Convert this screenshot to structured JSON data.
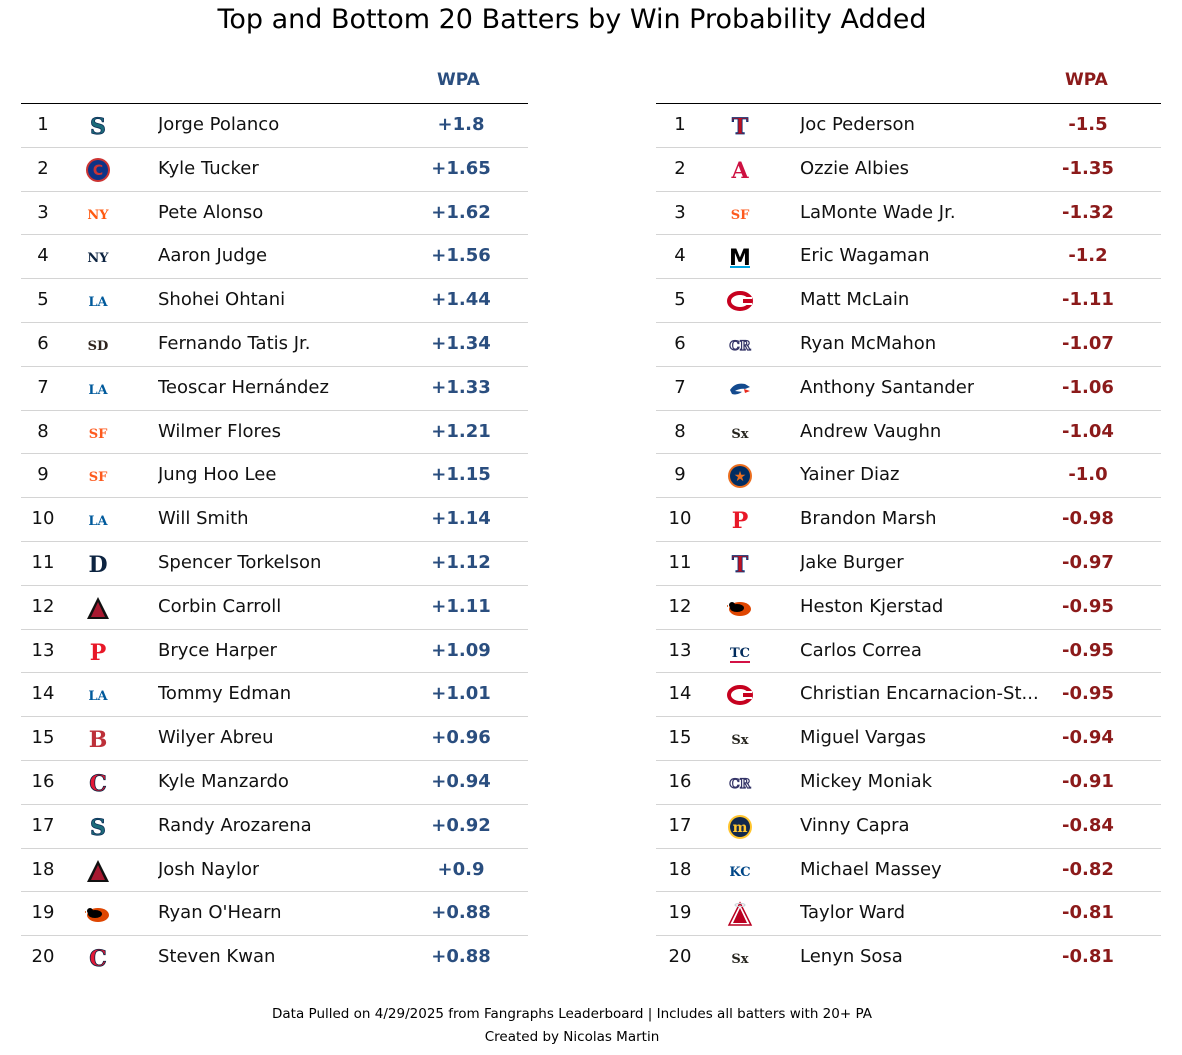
{
  "title": "Top and Bottom 20 Batters by Win Probability Added",
  "footer": {
    "line1": "Data Pulled on 4/29/2025 from Fangraphs Leaderboard | Includes all batters with 20+ PA",
    "line2": "Created by Nicolas Martin"
  },
  "colors": {
    "top_accent": "#2a4e7f",
    "bottom_accent": "#8b1a1a"
  },
  "chart_data": [
    {
      "type": "table",
      "columns": [
        "",
        "",
        "",
        "WPA"
      ],
      "header_wpa": "WPA",
      "rows": [
        {
          "rank": "1",
          "team_logo": "SEA",
          "name": "Jorge Polanco",
          "wpa": "+1.8"
        },
        {
          "rank": "2",
          "team_logo": "CHC",
          "name": "Kyle Tucker",
          "wpa": "+1.65"
        },
        {
          "rank": "3",
          "team_logo": "NYM",
          "name": "Pete Alonso",
          "wpa": "+1.62"
        },
        {
          "rank": "4",
          "team_logo": "NYY",
          "name": "Aaron Judge",
          "wpa": "+1.56"
        },
        {
          "rank": "5",
          "team_logo": "LAD",
          "name": "Shohei Ohtani",
          "wpa": "+1.44"
        },
        {
          "rank": "6",
          "team_logo": "SD",
          "name": "Fernando Tatis Jr.",
          "wpa": "+1.34"
        },
        {
          "rank": "7",
          "team_logo": "LAD",
          "name": "Teoscar Hernández",
          "wpa": "+1.33"
        },
        {
          "rank": "8",
          "team_logo": "SF",
          "name": "Wilmer Flores",
          "wpa": "+1.21"
        },
        {
          "rank": "9",
          "team_logo": "SF",
          "name": "Jung Hoo Lee",
          "wpa": "+1.15"
        },
        {
          "rank": "10",
          "team_logo": "LAD",
          "name": "Will Smith",
          "wpa": "+1.14"
        },
        {
          "rank": "11",
          "team_logo": "DET",
          "name": "Spencer Torkelson",
          "wpa": "+1.12"
        },
        {
          "rank": "12",
          "team_logo": "ARI",
          "name": "Corbin Carroll",
          "wpa": "+1.11"
        },
        {
          "rank": "13",
          "team_logo": "PHI",
          "name": "Bryce Harper",
          "wpa": "+1.09"
        },
        {
          "rank": "14",
          "team_logo": "LAD",
          "name": "Tommy Edman",
          "wpa": "+1.01"
        },
        {
          "rank": "15",
          "team_logo": "BOS",
          "name": "Wilyer Abreu",
          "wpa": "+0.96"
        },
        {
          "rank": "16",
          "team_logo": "CLE",
          "name": "Kyle Manzardo",
          "wpa": "+0.94"
        },
        {
          "rank": "17",
          "team_logo": "SEA",
          "name": "Randy Arozarena",
          "wpa": "+0.92"
        },
        {
          "rank": "18",
          "team_logo": "ARI",
          "name": "Josh Naylor",
          "wpa": "+0.9"
        },
        {
          "rank": "19",
          "team_logo": "BAL",
          "name": "Ryan O'Hearn",
          "wpa": "+0.88"
        },
        {
          "rank": "20",
          "team_logo": "CLE",
          "name": "Steven Kwan",
          "wpa": "+0.88"
        }
      ]
    },
    {
      "type": "table",
      "columns": [
        "",
        "",
        "",
        "WPA"
      ],
      "header_wpa": "WPA",
      "rows": [
        {
          "rank": "1",
          "team_logo": "TEX",
          "name": "Joc Pederson",
          "wpa": "-1.5"
        },
        {
          "rank": "2",
          "team_logo": "ATL",
          "name": "Ozzie Albies",
          "wpa": "-1.35"
        },
        {
          "rank": "3",
          "team_logo": "SF",
          "name": "LaMonte Wade Jr.",
          "wpa": "-1.32"
        },
        {
          "rank": "4",
          "team_logo": "MIA",
          "name": "Eric Wagaman",
          "wpa": "-1.2"
        },
        {
          "rank": "5",
          "team_logo": "CIN",
          "name": "Matt McLain",
          "wpa": "-1.11"
        },
        {
          "rank": "6",
          "team_logo": "COL",
          "name": "Ryan McMahon",
          "wpa": "-1.07"
        },
        {
          "rank": "7",
          "team_logo": "TOR",
          "name": "Anthony Santander",
          "wpa": "-1.06"
        },
        {
          "rank": "8",
          "team_logo": "CWS",
          "name": "Andrew Vaughn",
          "wpa": "-1.04"
        },
        {
          "rank": "9",
          "team_logo": "HOU",
          "name": "Yainer Diaz",
          "wpa": "-1.0"
        },
        {
          "rank": "10",
          "team_logo": "PHI",
          "name": "Brandon Marsh",
          "wpa": "-0.98"
        },
        {
          "rank": "11",
          "team_logo": "TEX",
          "name": "Jake Burger",
          "wpa": "-0.97"
        },
        {
          "rank": "12",
          "team_logo": "BAL",
          "name": "Heston Kjerstad",
          "wpa": "-0.95"
        },
        {
          "rank": "13",
          "team_logo": "MIN",
          "name": "Carlos Correa",
          "wpa": "-0.95"
        },
        {
          "rank": "14",
          "team_logo": "CIN",
          "name": "Christian Encarnacion-St...",
          "wpa": "-0.95"
        },
        {
          "rank": "15",
          "team_logo": "CWS",
          "name": "Miguel Vargas",
          "wpa": "-0.94"
        },
        {
          "rank": "16",
          "team_logo": "COL",
          "name": "Mickey Moniak",
          "wpa": "-0.91"
        },
        {
          "rank": "17",
          "team_logo": "MIL",
          "name": "Vinny Capra",
          "wpa": "-0.84"
        },
        {
          "rank": "18",
          "team_logo": "KC",
          "name": "Michael Massey",
          "wpa": "-0.82"
        },
        {
          "rank": "19",
          "team_logo": "LAA",
          "name": "Taylor Ward",
          "wpa": "-0.81"
        },
        {
          "rank": "20",
          "team_logo": "CWS",
          "name": "Lenyn Sosa",
          "wpa": "-0.81"
        }
      ]
    }
  ]
}
